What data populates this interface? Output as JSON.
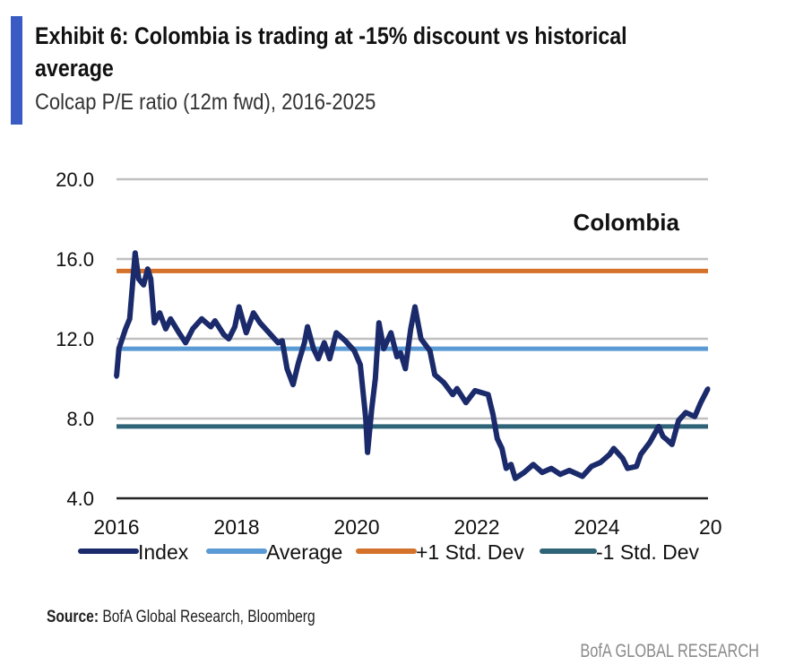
{
  "header": {
    "title": "Exhibit 6: Colombia is trading at -15% discount vs historical average",
    "subtitle": "Colcap P/E ratio (12m fwd), 2016-2025"
  },
  "footer": {
    "source_label": "Source:",
    "source_text": "BofA Global Research, Bloomberg",
    "brand": "BofA GLOBAL RESEARCH"
  },
  "chart_data": {
    "type": "line",
    "annotation": "Colombia",
    "ylim": [
      4,
      20
    ],
    "yticks": [
      "4.0",
      "8.0",
      "12.0",
      "16.0",
      "20.0"
    ],
    "ytick_values": [
      4,
      8,
      12,
      16,
      20
    ],
    "xlim": [
      2016,
      2025.9
    ],
    "xticks": [
      "2016",
      "2018",
      "2020",
      "2022",
      "2024",
      "20"
    ],
    "xtick_values": [
      2016,
      2018,
      2020,
      2022,
      2024,
      2026
    ],
    "grid": true,
    "legend_position": "bottom",
    "colors": {
      "Index": "#1b2a6b",
      "Average": "#5b9bd5",
      "+1 Std. Dev": "#d4712a",
      "-1 Std. Dev": "#2f6378",
      "grid": "#c0c0c0"
    },
    "series": [
      {
        "name": "Index",
        "x": [
          2016.0,
          2016.04,
          2016.15,
          2016.22,
          2016.31,
          2016.37,
          2016.45,
          2016.52,
          2016.57,
          2016.63,
          2016.72,
          2016.82,
          2016.9,
          2017.04,
          2017.15,
          2017.27,
          2017.42,
          2017.57,
          2017.64,
          2017.79,
          2017.87,
          2017.97,
          2018.04,
          2018.16,
          2018.28,
          2018.39,
          2018.54,
          2018.69,
          2018.76,
          2018.84,
          2018.94,
          2019.03,
          2019.13,
          2019.18,
          2019.28,
          2019.36,
          2019.46,
          2019.55,
          2019.66,
          2019.81,
          2019.96,
          2020.06,
          2020.15,
          2020.18,
          2020.25,
          2020.31,
          2020.37,
          2020.45,
          2020.57,
          2020.67,
          2020.73,
          2020.81,
          2020.9,
          2020.97,
          2021.07,
          2021.22,
          2021.3,
          2021.45,
          2021.6,
          2021.67,
          2021.82,
          2021.97,
          2022.19,
          2022.27,
          2022.34,
          2022.42,
          2022.49,
          2022.57,
          2022.64,
          2022.79,
          2022.94,
          2023.09,
          2023.24,
          2023.39,
          2023.54,
          2023.76,
          2023.91,
          2024.06,
          2024.21,
          2024.28,
          2024.43,
          2024.51,
          2024.66,
          2024.73,
          2024.88,
          2025.03,
          2025.1,
          2025.18,
          2025.25,
          2025.36,
          2025.48,
          2025.63,
          2025.73,
          2025.85
        ],
        "values": [
          10.1,
          11.5,
          12.5,
          13.0,
          16.3,
          15.0,
          14.7,
          15.5,
          15.0,
          12.8,
          13.3,
          12.5,
          13.0,
          12.3,
          11.8,
          12.5,
          13.0,
          12.6,
          12.9,
          12.2,
          12.0,
          12.6,
          13.6,
          12.3,
          13.3,
          12.8,
          12.3,
          11.8,
          11.9,
          10.5,
          9.7,
          10.8,
          11.8,
          12.6,
          11.5,
          11.0,
          11.8,
          11.0,
          12.3,
          11.9,
          11.4,
          10.7,
          8.0,
          6.3,
          8.5,
          10.0,
          12.8,
          11.5,
          12.3,
          11.1,
          11.3,
          10.5,
          12.5,
          13.6,
          12.0,
          11.4,
          10.2,
          9.8,
          9.2,
          9.5,
          8.8,
          9.4,
          9.2,
          8.2,
          7.0,
          6.5,
          5.5,
          5.7,
          5.0,
          5.3,
          5.7,
          5.3,
          5.5,
          5.2,
          5.4,
          5.1,
          5.6,
          5.8,
          6.2,
          6.5,
          6.0,
          5.5,
          5.6,
          6.2,
          6.8,
          7.6,
          7.1,
          6.9,
          6.7,
          7.9,
          8.3,
          8.1,
          8.8,
          9.5
        ]
      },
      {
        "name": "Average",
        "value": 11.5
      },
      {
        "name": "+1 Std. Dev",
        "value": 15.4
      },
      {
        "name": "-1 Std. Dev",
        "value": 7.6
      }
    ]
  }
}
